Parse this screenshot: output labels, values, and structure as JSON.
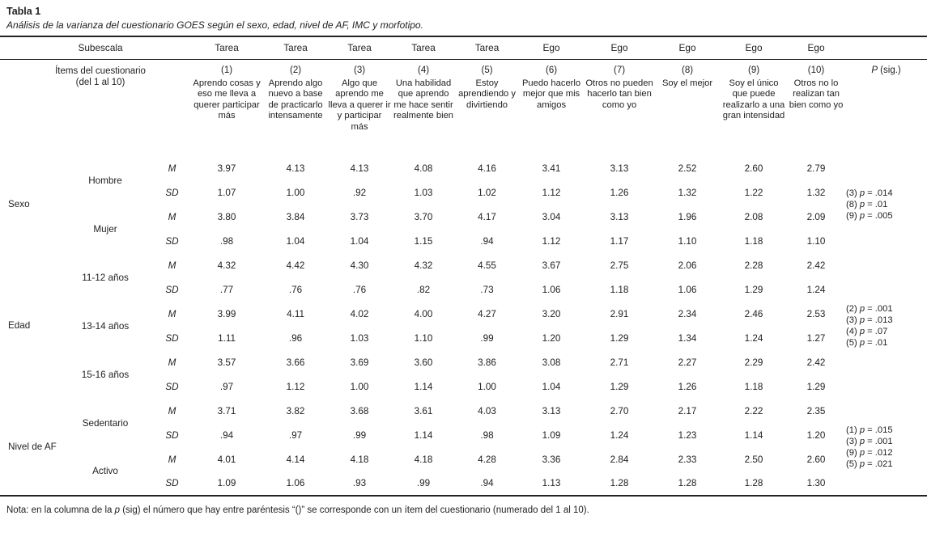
{
  "caption": {
    "title": "Tabla 1",
    "subtitle": "Análisis de la varianza del cuestionario GOES según el sexo, edad, nivel de AF, IMC y morfotipo."
  },
  "header": {
    "subescala": "Subescala",
    "items_label_line1": "Ítems del cuestionario",
    "items_label_line2": "(del 1 al 10)",
    "p_col": {
      "p": "P",
      "sig": " (sig.)"
    },
    "columns": [
      {
        "group": "Tarea",
        "num": "(1)",
        "desc": "Aprendo cosas y eso me lleva a querer participar más"
      },
      {
        "group": "Tarea",
        "num": "(2)",
        "desc": "Aprendo algo nuevo a base de practicarlo intensamente"
      },
      {
        "group": "Tarea",
        "num": "(3)",
        "desc": "Algo que aprendo me lleva a querer ir y participar más"
      },
      {
        "group": "Tarea",
        "num": "(4)",
        "desc": "Una habilidad que aprendo me hace sentir realmente bien"
      },
      {
        "group": "Tarea",
        "num": "(5)",
        "desc": "Estoy aprendiendo y divirtiendo"
      },
      {
        "group": "Ego",
        "num": "(6)",
        "desc": "Puedo hacerlo mejor que mis amigos"
      },
      {
        "group": "Ego",
        "num": "(7)",
        "desc": "Otros no pueden hacerlo tan bien como yo"
      },
      {
        "group": "Ego",
        "num": "(8)",
        "desc": "Soy el mejor"
      },
      {
        "group": "Ego",
        "num": "(9)",
        "desc": "Soy el único que puede realizarlo a una gran intensidad"
      },
      {
        "group": "Ego",
        "num": "(10)",
        "desc": "Otros no lo realizan tan bien como yo"
      }
    ]
  },
  "stats": {
    "mean": "M",
    "sd": "SD"
  },
  "sections": [
    {
      "name": "Sexo",
      "psig": [
        "(3) p = .014",
        "(8) p = .01",
        "(9) p = .005"
      ],
      "groups": [
        {
          "label": "Hombre",
          "M": [
            "3.97",
            "4.13",
            "4.13",
            "4.08",
            "4.16",
            "3.41",
            "3.13",
            "2.52",
            "2.60",
            "2.79"
          ],
          "SD": [
            "1.07",
            "1.00",
            ".92",
            "1.03",
            "1.02",
            "1.12",
            "1.26",
            "1.32",
            "1.22",
            "1.32"
          ]
        },
        {
          "label": "Mujer",
          "M": [
            "3.80",
            "3.84",
            "3.73",
            "3.70",
            "4.17",
            "3.04",
            "3.13",
            "1.96",
            "2.08",
            "2.09"
          ],
          "SD": [
            ".98",
            "1.04",
            "1.04",
            "1.15",
            ".94",
            "1.12",
            "1.17",
            "1.10",
            "1.18",
            "1.10"
          ]
        }
      ]
    },
    {
      "name": "Edad",
      "psig": [
        "(2) p = .001",
        "(3) p = .013",
        "(4) p = .07",
        "(5) p = .01"
      ],
      "groups": [
        {
          "label": "11-12 años",
          "M": [
            "4.32",
            "4.42",
            "4.30",
            "4.32",
            "4.55",
            "3.67",
            "2.75",
            "2.06",
            "2.28",
            "2.42"
          ],
          "SD": [
            ".77",
            ".76",
            ".76",
            ".82",
            ".73",
            "1.06",
            "1.18",
            "1.06",
            "1.29",
            "1.24"
          ]
        },
        {
          "label": "13-14 años",
          "M": [
            "3.99",
            "4.11",
            "4.02",
            "4.00",
            "4.27",
            "3.20",
            "2.91",
            "2.34",
            "2.46",
            "2.53"
          ],
          "SD": [
            "1.11",
            ".96",
            "1.03",
            "1.10",
            ".99",
            "1.20",
            "1.29",
            "1.34",
            "1.24",
            "1.27"
          ]
        },
        {
          "label": "15-16 años",
          "M": [
            "3.57",
            "3.66",
            "3.69",
            "3.60",
            "3.86",
            "3.08",
            "2.71",
            "2.27",
            "2.29",
            "2.42"
          ],
          "SD": [
            ".97",
            "1.12",
            "1.00",
            "1.14",
            "1.00",
            "1.04",
            "1.29",
            "1.26",
            "1.18",
            "1.29"
          ]
        }
      ]
    },
    {
      "name": "Nivel de AF",
      "psig": [
        "(1) p = .015",
        "(3) p = .001",
        "(9) p = .012",
        "(5) p = .021"
      ],
      "groups": [
        {
          "label": "Sedentario",
          "M": [
            "3.71",
            "3.82",
            "3.68",
            "3.61",
            "4.03",
            "3.13",
            "2.70",
            "2.17",
            "2.22",
            "2.35"
          ],
          "SD": [
            ".94",
            ".97",
            ".99",
            "1.14",
            ".98",
            "1.09",
            "1.24",
            "1.23",
            "1.14",
            "1.20"
          ]
        },
        {
          "label": "Activo",
          "M": [
            "4.01",
            "4.14",
            "4.18",
            "4.18",
            "4.28",
            "3.36",
            "2.84",
            "2.33",
            "2.50",
            "2.60"
          ],
          "SD": [
            "1.09",
            "1.06",
            ".93",
            ".99",
            ".94",
            "1.13",
            "1.28",
            "1.28",
            "1.28",
            "1.30"
          ]
        }
      ]
    }
  ],
  "note": "Nota: en la columna de la p (sig) el número que hay entre paréntesis “()” se corresponde con un ítem del cuestionario (numerado del 1 al 10)."
}
